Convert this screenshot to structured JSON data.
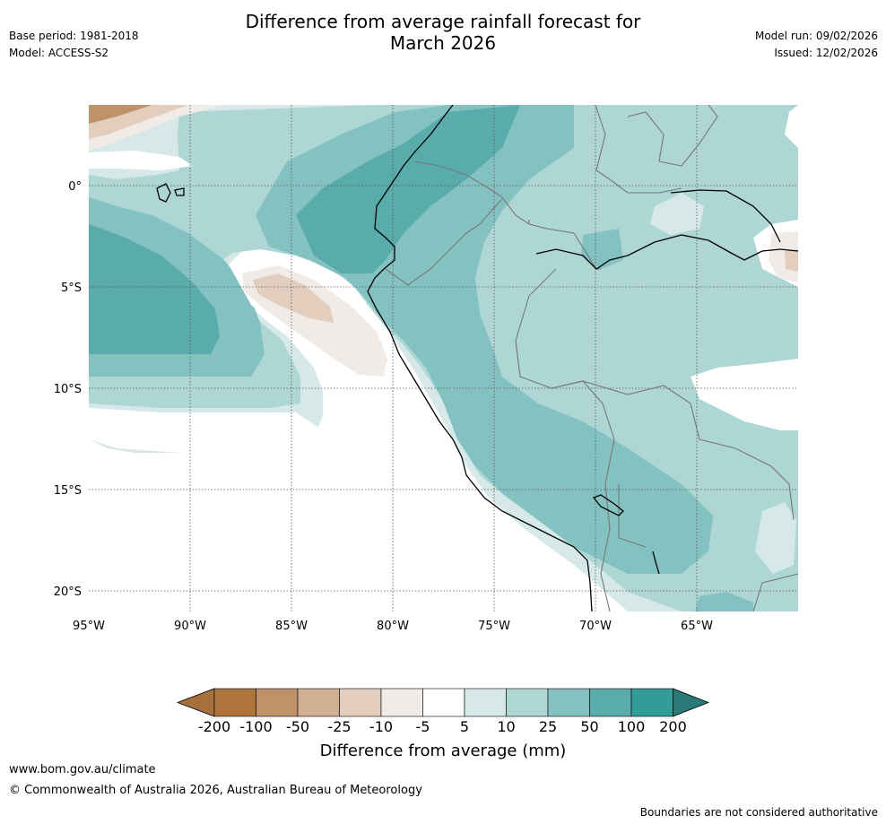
{
  "header": {
    "title_line1": "Difference from average rainfall forecast for",
    "title_line2": "March 2026",
    "base_period": "Base period: 1981-2018",
    "model": "Model: ACCESS-S2",
    "model_run": "Model run: 09/02/2026",
    "issued": "Issued: 12/02/2026"
  },
  "map": {
    "lon_labels": [
      "95°W",
      "90°W",
      "85°W",
      "80°W",
      "75°W",
      "70°W",
      "65°W"
    ],
    "lat_labels": [
      "0°",
      "5°S",
      "10°S",
      "15°S",
      "20°S"
    ],
    "lon_range": [
      -95,
      -60
    ],
    "lat_range": [
      -21,
      4
    ]
  },
  "legend": {
    "title": "Difference from average (mm)",
    "ticks": [
      "-200",
      "-100",
      "-50",
      "-25",
      "-10",
      "-5",
      "5",
      "10",
      "25",
      "50",
      "100",
      "200"
    ],
    "colors": [
      "#a5703a",
      "#ad743e",
      "#c09269",
      "#d1b093",
      "#e3cebd",
      "#f0ebe6",
      "#ffffff",
      "#d6e9e8",
      "#add6d5",
      "#84c2c1",
      "#5aabab",
      "#339b98",
      "#2a7a78"
    ]
  },
  "footer": {
    "url": "www.bom.gov.au/climate",
    "copyright": "© Commonwealth of Australia 2026, Australian Bureau of Meteorology",
    "disclaimer": "Boundaries are not considered authoritative"
  }
}
